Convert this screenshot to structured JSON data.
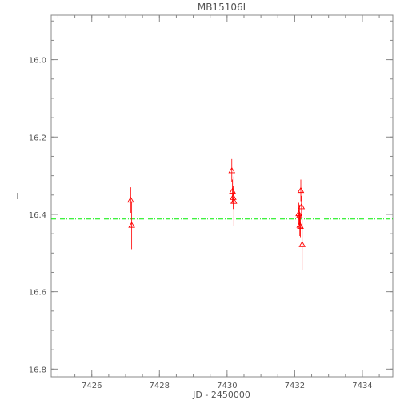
{
  "chart_data": {
    "type": "scatter",
    "title": "MB15106I",
    "xlabel": "JD - 2450000",
    "ylabel": "I",
    "xlim": [
      7424.8,
      7434.9
    ],
    "ylim": [
      15.885,
      16.82
    ],
    "y_inverted": true,
    "x_ticks": [
      7426,
      7428,
      7430,
      7432,
      7434
    ],
    "x_tick_labels": [
      "7426",
      "7428",
      "7430",
      "7432",
      "7434"
    ],
    "y_ticks": [
      16.0,
      16.2,
      16.4,
      16.6,
      16.8
    ],
    "y_tick_labels": [
      "16.0",
      "16.2",
      "16.4",
      "16.6",
      "16.8"
    ],
    "x_minor_step": 0.5,
    "y_minor_step": 0.05,
    "grid": false,
    "marker": "triangle-open",
    "colors": {
      "points": "#ff0000",
      "reference_line": "#00ee00",
      "axes": "#888888",
      "text": "#555555"
    },
    "reference_line": {
      "y": 16.412,
      "style": "dash-dot"
    },
    "points": [
      {
        "x": 7427.15,
        "y": 16.363,
        "err": 0.033
      },
      {
        "x": 7427.18,
        "y": 16.428,
        "err": 0.062
      },
      {
        "x": 7430.14,
        "y": 16.287,
        "err": 0.03
      },
      {
        "x": 7430.16,
        "y": 16.34,
        "err": 0.03
      },
      {
        "x": 7430.18,
        "y": 16.356,
        "err": 0.03
      },
      {
        "x": 7430.2,
        "y": 16.366,
        "err": 0.064
      },
      {
        "x": 7432.12,
        "y": 16.398,
        "err": 0.028
      },
      {
        "x": 7432.14,
        "y": 16.403,
        "err": 0.028
      },
      {
        "x": 7432.15,
        "y": 16.428,
        "err": 0.028
      },
      {
        "x": 7432.17,
        "y": 16.431,
        "err": 0.028
      },
      {
        "x": 7432.18,
        "y": 16.338,
        "err": 0.028
      },
      {
        "x": 7432.2,
        "y": 16.38,
        "err": 0.028
      },
      {
        "x": 7432.22,
        "y": 16.478,
        "err": 0.065
      }
    ]
  }
}
